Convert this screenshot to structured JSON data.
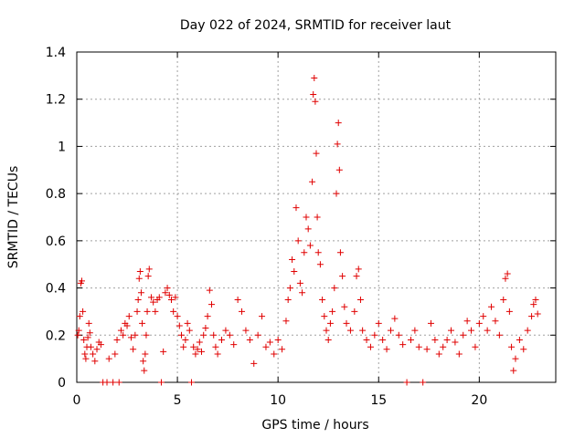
{
  "chart_data": {
    "type": "scatter",
    "title": "Day 022 of 2024, SRMTID for receiver laut",
    "xlabel": "GPS time / hours",
    "ylabel": "SRMTID / TECUs",
    "xlim": [
      0,
      23.8
    ],
    "ylim": [
      0,
      1.4
    ],
    "xticks": [
      0,
      5,
      10,
      15,
      20
    ],
    "yticks": [
      0,
      0.2,
      0.4,
      0.6,
      0.8,
      1,
      1.2,
      1.4
    ],
    "xtick_labels": [
      "0",
      "5",
      "10",
      "15",
      "20"
    ],
    "ytick_labels": [
      "0",
      "0.2",
      "0.4",
      "0.6",
      "0.8",
      "1",
      "1.2",
      "1.4"
    ],
    "grid": true,
    "marker": "+",
    "color": "#e00000",
    "series": [
      {
        "name": "SRMTID",
        "points": [
          [
            0.05,
            0.2
          ],
          [
            0.1,
            0.22
          ],
          [
            0.15,
            0.28
          ],
          [
            0.2,
            0.42
          ],
          [
            0.25,
            0.43
          ],
          [
            0.3,
            0.3
          ],
          [
            0.35,
            0.18
          ],
          [
            0.4,
            0.12
          ],
          [
            0.45,
            0.1
          ],
          [
            0.5,
            0.15
          ],
          [
            0.55,
            0.19
          ],
          [
            0.6,
            0.25
          ],
          [
            0.65,
            0.21
          ],
          [
            0.7,
            0.15
          ],
          [
            0.8,
            0.12
          ],
          [
            0.9,
            0.09
          ],
          [
            1.0,
            0.14
          ],
          [
            1.1,
            0.17
          ],
          [
            1.2,
            0.16
          ],
          [
            1.3,
            0.0
          ],
          [
            1.5,
            0.0
          ],
          [
            1.6,
            0.1
          ],
          [
            1.8,
            0.0
          ],
          [
            1.9,
            0.12
          ],
          [
            2.0,
            0.18
          ],
          [
            2.1,
            0.0
          ],
          [
            2.2,
            0.22
          ],
          [
            2.3,
            0.2
          ],
          [
            2.4,
            0.25
          ],
          [
            2.5,
            0.24
          ],
          [
            2.6,
            0.28
          ],
          [
            2.7,
            0.19
          ],
          [
            2.8,
            0.14
          ],
          [
            2.9,
            0.2
          ],
          [
            3.0,
            0.3
          ],
          [
            3.05,
            0.35
          ],
          [
            3.1,
            0.44
          ],
          [
            3.15,
            0.47
          ],
          [
            3.2,
            0.38
          ],
          [
            3.25,
            0.25
          ],
          [
            3.3,
            0.09
          ],
          [
            3.35,
            0.05
          ],
          [
            3.4,
            0.12
          ],
          [
            3.45,
            0.2
          ],
          [
            3.5,
            0.3
          ],
          [
            3.55,
            0.45
          ],
          [
            3.6,
            0.48
          ],
          [
            3.7,
            0.36
          ],
          [
            3.8,
            0.34
          ],
          [
            3.9,
            0.3
          ],
          [
            4.0,
            0.35
          ],
          [
            4.1,
            0.36
          ],
          [
            4.2,
            0.0
          ],
          [
            4.3,
            0.13
          ],
          [
            4.4,
            0.38
          ],
          [
            4.5,
            0.4
          ],
          [
            4.6,
            0.37
          ],
          [
            4.7,
            0.35
          ],
          [
            4.8,
            0.3
          ],
          [
            4.9,
            0.36
          ],
          [
            5.0,
            0.28
          ],
          [
            5.1,
            0.24
          ],
          [
            5.2,
            0.2
          ],
          [
            5.3,
            0.15
          ],
          [
            5.4,
            0.18
          ],
          [
            5.5,
            0.25
          ],
          [
            5.6,
            0.22
          ],
          [
            5.7,
            0.0
          ],
          [
            5.8,
            0.15
          ],
          [
            5.9,
            0.12
          ],
          [
            6.0,
            0.14
          ],
          [
            6.1,
            0.17
          ],
          [
            6.2,
            0.13
          ],
          [
            6.3,
            0.2
          ],
          [
            6.4,
            0.23
          ],
          [
            6.5,
            0.28
          ],
          [
            6.6,
            0.39
          ],
          [
            6.7,
            0.33
          ],
          [
            6.8,
            0.2
          ],
          [
            6.9,
            0.15
          ],
          [
            7.0,
            0.12
          ],
          [
            7.2,
            0.18
          ],
          [
            7.4,
            0.22
          ],
          [
            7.6,
            0.2
          ],
          [
            7.8,
            0.16
          ],
          [
            8.0,
            0.35
          ],
          [
            8.2,
            0.3
          ],
          [
            8.4,
            0.22
          ],
          [
            8.6,
            0.18
          ],
          [
            8.8,
            0.08
          ],
          [
            9.0,
            0.2
          ],
          [
            9.2,
            0.28
          ],
          [
            9.4,
            0.15
          ],
          [
            9.6,
            0.17
          ],
          [
            9.8,
            0.12
          ],
          [
            10.0,
            0.18
          ],
          [
            10.2,
            0.14
          ],
          [
            10.4,
            0.26
          ],
          [
            10.5,
            0.35
          ],
          [
            10.6,
            0.4
          ],
          [
            10.7,
            0.52
          ],
          [
            10.8,
            0.47
          ],
          [
            10.9,
            0.74
          ],
          [
            11.0,
            0.6
          ],
          [
            11.1,
            0.42
          ],
          [
            11.2,
            0.38
          ],
          [
            11.3,
            0.55
          ],
          [
            11.4,
            0.7
          ],
          [
            11.5,
            0.65
          ],
          [
            11.6,
            0.58
          ],
          [
            11.7,
            0.85
          ],
          [
            11.75,
            1.22
          ],
          [
            11.8,
            1.29
          ],
          [
            11.85,
            1.19
          ],
          [
            11.9,
            0.97
          ],
          [
            11.95,
            0.7
          ],
          [
            12.0,
            0.55
          ],
          [
            12.1,
            0.5
          ],
          [
            12.2,
            0.35
          ],
          [
            12.3,
            0.28
          ],
          [
            12.4,
            0.22
          ],
          [
            12.5,
            0.18
          ],
          [
            12.6,
            0.25
          ],
          [
            12.7,
            0.3
          ],
          [
            12.8,
            0.4
          ],
          [
            12.9,
            0.8
          ],
          [
            12.95,
            1.01
          ],
          [
            13.0,
            1.1
          ],
          [
            13.05,
            0.9
          ],
          [
            13.1,
            0.55
          ],
          [
            13.2,
            0.45
          ],
          [
            13.3,
            0.32
          ],
          [
            13.4,
            0.25
          ],
          [
            13.6,
            0.22
          ],
          [
            13.8,
            0.3
          ],
          [
            13.9,
            0.45
          ],
          [
            14.0,
            0.48
          ],
          [
            14.1,
            0.35
          ],
          [
            14.2,
            0.22
          ],
          [
            14.4,
            0.18
          ],
          [
            14.6,
            0.15
          ],
          [
            14.8,
            0.2
          ],
          [
            15.0,
            0.25
          ],
          [
            15.2,
            0.18
          ],
          [
            15.4,
            0.14
          ],
          [
            15.6,
            0.22
          ],
          [
            15.8,
            0.27
          ],
          [
            16.0,
            0.2
          ],
          [
            16.2,
            0.16
          ],
          [
            16.4,
            0.0
          ],
          [
            16.6,
            0.18
          ],
          [
            16.8,
            0.22
          ],
          [
            17.0,
            0.15
          ],
          [
            17.2,
            0.0
          ],
          [
            17.4,
            0.14
          ],
          [
            17.6,
            0.25
          ],
          [
            17.8,
            0.18
          ],
          [
            18.0,
            0.12
          ],
          [
            18.2,
            0.15
          ],
          [
            18.4,
            0.18
          ],
          [
            18.6,
            0.22
          ],
          [
            18.8,
            0.17
          ],
          [
            19.0,
            0.12
          ],
          [
            19.2,
            0.2
          ],
          [
            19.4,
            0.26
          ],
          [
            19.6,
            0.22
          ],
          [
            19.8,
            0.15
          ],
          [
            20.0,
            0.25
          ],
          [
            20.2,
            0.28
          ],
          [
            20.4,
            0.22
          ],
          [
            20.6,
            0.32
          ],
          [
            20.8,
            0.26
          ],
          [
            21.0,
            0.2
          ],
          [
            21.2,
            0.35
          ],
          [
            21.3,
            0.44
          ],
          [
            21.4,
            0.46
          ],
          [
            21.5,
            0.3
          ],
          [
            21.6,
            0.15
          ],
          [
            21.7,
            0.05
          ],
          [
            21.8,
            0.1
          ],
          [
            22.0,
            0.18
          ],
          [
            22.2,
            0.14
          ],
          [
            22.4,
            0.22
          ],
          [
            22.6,
            0.28
          ],
          [
            22.7,
            0.33
          ],
          [
            22.8,
            0.35
          ],
          [
            22.9,
            0.29
          ]
        ]
      }
    ]
  }
}
